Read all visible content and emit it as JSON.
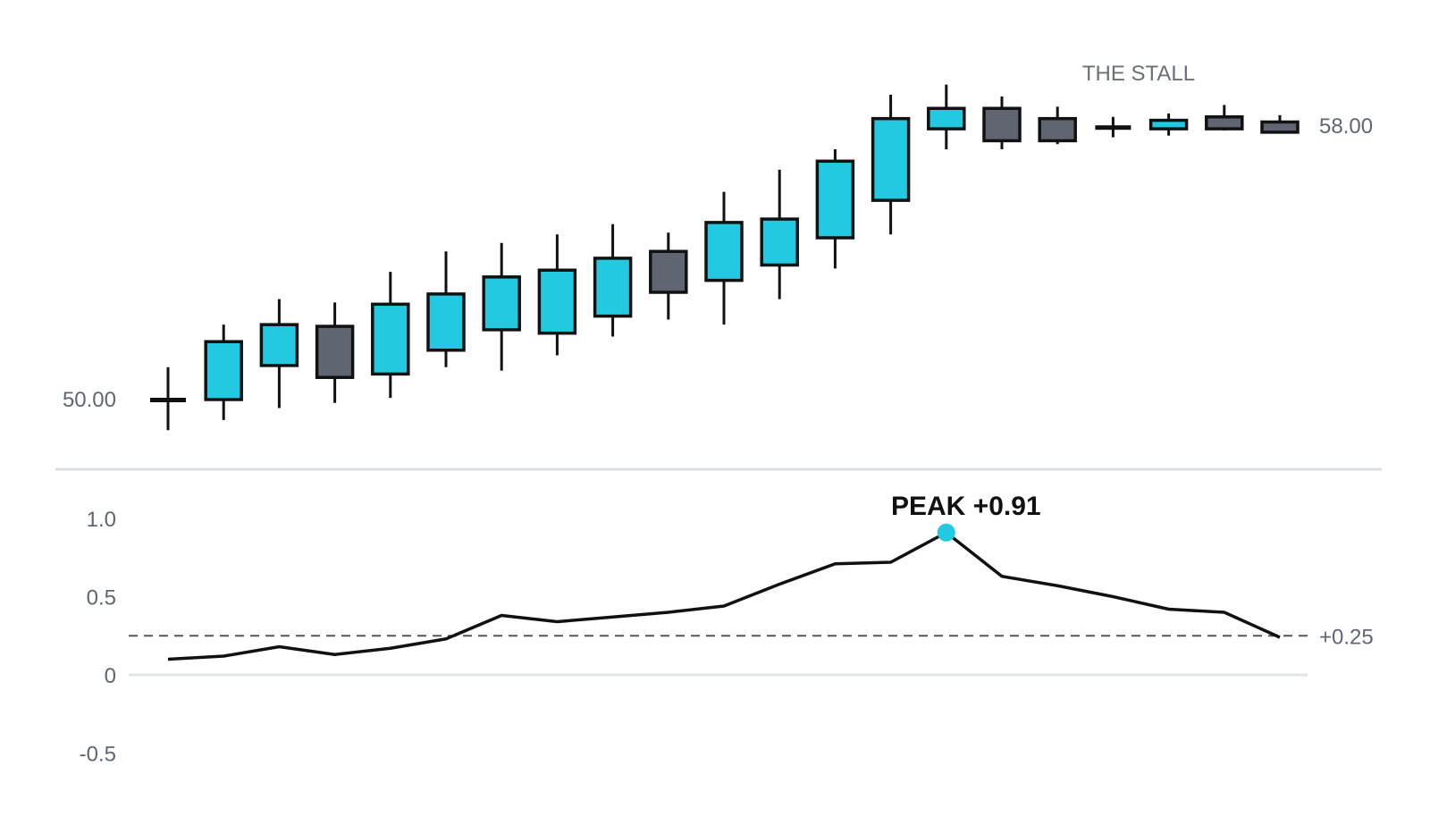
{
  "chart_data": [
    {
      "type": "candlestick",
      "title": "",
      "price_labels": [
        "50.00",
        "58.00"
      ],
      "annotation": "THE STALL",
      "colors": {
        "up": "#22c9e0",
        "down": "#5f6672",
        "outline": "#111111"
      },
      "candles": [
        {
          "open": 50.0,
          "high": 50.95,
          "low": 49.1,
          "close": 50.0
        },
        {
          "open": 50.0,
          "high": 52.2,
          "low": 49.4,
          "close": 51.7
        },
        {
          "open": 51.0,
          "high": 52.95,
          "low": 49.75,
          "close": 52.2
        },
        {
          "open": 52.15,
          "high": 52.85,
          "low": 49.9,
          "close": 50.65
        },
        {
          "open": 50.75,
          "high": 53.75,
          "low": 50.05,
          "close": 52.8
        },
        {
          "open": 51.45,
          "high": 54.35,
          "low": 50.95,
          "close": 53.1
        },
        {
          "open": 52.05,
          "high": 54.6,
          "low": 50.85,
          "close": 53.6
        },
        {
          "open": 51.95,
          "high": 54.85,
          "low": 51.3,
          "close": 53.8
        },
        {
          "open": 52.45,
          "high": 55.15,
          "low": 51.85,
          "close": 54.15
        },
        {
          "open": 54.35,
          "high": 54.9,
          "low": 52.35,
          "close": 53.15
        },
        {
          "open": 53.5,
          "high": 56.1,
          "low": 52.2,
          "close": 55.2
        },
        {
          "open": 53.95,
          "high": 56.75,
          "low": 52.95,
          "close": 55.3
        },
        {
          "open": 54.75,
          "high": 57.35,
          "low": 53.85,
          "close": 57.0
        },
        {
          "open": 55.85,
          "high": 58.95,
          "low": 54.85,
          "close": 58.25
        },
        {
          "open": 57.95,
          "high": 59.25,
          "low": 57.35,
          "close": 58.55
        },
        {
          "open": 58.55,
          "high": 58.9,
          "low": 57.35,
          "close": 57.6
        },
        {
          "open": 58.25,
          "high": 58.6,
          "low": 57.5,
          "close": 57.6
        },
        {
          "open": 57.9,
          "high": 58.3,
          "low": 57.7,
          "close": 58.0
        },
        {
          "open": 57.95,
          "high": 58.4,
          "low": 57.75,
          "close": 58.2
        },
        {
          "open": 58.3,
          "high": 58.65,
          "low": 57.9,
          "close": 57.95
        },
        {
          "open": 58.15,
          "high": 58.35,
          "low": 57.9,
          "close": 57.85
        }
      ]
    },
    {
      "type": "line",
      "title": "",
      "y_ticks": [
        1.0,
        0.5,
        0,
        -0.5
      ],
      "y_tick_labels": [
        "1.0",
        "0.5",
        "0",
        "-0.5"
      ],
      "ylim": [
        -0.5,
        1.0
      ],
      "reference": {
        "value": 0.25,
        "label": "+0.25"
      },
      "peak": {
        "index": 14,
        "label": "PEAK +0.91"
      },
      "colors": {
        "line": "#111111",
        "peak": "#22c9e0",
        "reference": "#555555"
      },
      "values": [
        0.1,
        0.12,
        0.18,
        0.13,
        0.17,
        0.23,
        0.38,
        0.34,
        0.37,
        0.4,
        0.44,
        0.58,
        0.71,
        0.72,
        0.91,
        0.63,
        0.57,
        0.5,
        0.42,
        0.4,
        0.24
      ]
    }
  ]
}
